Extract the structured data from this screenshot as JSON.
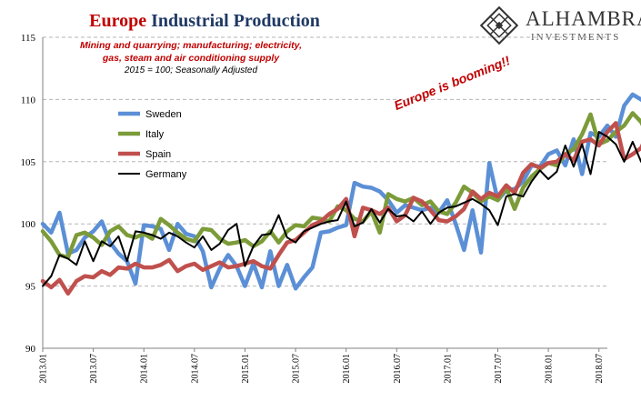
{
  "title": {
    "part1": "Europe",
    "part2": "Industrial Production"
  },
  "subtitle_lines": [
    "Mining and quarrying; manufacturing; electricity,",
    "gas, steam and air conditioning supply"
  ],
  "note": "2015 = 100; Seasonally Adjusted",
  "annotation": "Europe is booming!!",
  "logo": {
    "name": "ALHAMBRA",
    "tagline": "INVESTMENTS"
  },
  "chart_data": {
    "type": "line",
    "ylim": [
      90,
      115
    ],
    "y_ticks": [
      90,
      95,
      100,
      105,
      110,
      115
    ],
    "grid": "horizontal dashed",
    "legend_position": "upper-left",
    "x_tick_labels": [
      "2013.01",
      "2013.07",
      "2014.01",
      "2014.07",
      "2015.01",
      "2015.07",
      "2016.01",
      "2016.07",
      "2017.01",
      "2017.07",
      "2018.01",
      "2018.07"
    ],
    "x_start": "2013.01",
    "x_end": "2018.07",
    "series": [
      {
        "name": "Sweden",
        "color": "#5b8fd6",
        "width": 4.5,
        "values": [
          100.0,
          99.3,
          100.9,
          97.6,
          97.9,
          98.9,
          99.4,
          100.2,
          98.5,
          97.6,
          97.0,
          95.2,
          99.9,
          99.8,
          99.6,
          97.9,
          100.0,
          99.2,
          99.0,
          97.8,
          94.9,
          96.4,
          97.5,
          96.6,
          95.0,
          96.8,
          94.9,
          97.8,
          95.0,
          96.7,
          94.8,
          95.7,
          96.5,
          99.3,
          99.4,
          99.7,
          99.9,
          103.3,
          103.0,
          102.9,
          102.6,
          101.9,
          100.9,
          101.5,
          101.3,
          101.1,
          101.3,
          100.9,
          101.9,
          100.0,
          97.9,
          101.1,
          97.7,
          104.9,
          101.9,
          102.7,
          102.8,
          103.4,
          104.7,
          104.6,
          105.6,
          105.9,
          104.7,
          106.8,
          104.0,
          107.3,
          107.0,
          107.9,
          107.0,
          109.5,
          110.4,
          110.0,
          109.5,
          110.2,
          108.4,
          110.5,
          110.9,
          107.0
        ]
      },
      {
        "name": "Italy",
        "color": "#7c9b39",
        "width": 4.5,
        "values": [
          99.4,
          98.6,
          97.5,
          97.3,
          99.1,
          99.3,
          98.9,
          98.3,
          99.4,
          99.8,
          99.1,
          98.9,
          99.2,
          98.8,
          100.4,
          99.9,
          99.3,
          98.8,
          98.6,
          99.6,
          99.5,
          98.8,
          98.4,
          98.5,
          98.7,
          98.2,
          98.6,
          99.4,
          98.5,
          99.4,
          99.9,
          99.8,
          100.5,
          100.4,
          100.2,
          101.4,
          101.1,
          100.4,
          100.2,
          101.0,
          99.3,
          102.4,
          102.0,
          101.8,
          102.1,
          101.5,
          101.8,
          101.0,
          100.8,
          101.7,
          103.0,
          102.5,
          101.8,
          102.2,
          101.9,
          102.9,
          101.2,
          102.9,
          103.8,
          104.4,
          104.9,
          104.7,
          105.6,
          106.0,
          107.2,
          108.8,
          106.4,
          106.7,
          107.4,
          107.9,
          108.9,
          108.2,
          106.9,
          107.5,
          107.9,
          107.4,
          108.0,
          106.2
        ]
      },
      {
        "name": "Spain",
        "color": "#c0504d",
        "width": 4.5,
        "values": [
          95.4,
          94.9,
          95.5,
          94.4,
          95.4,
          95.8,
          95.7,
          96.2,
          95.9,
          96.5,
          96.4,
          96.8,
          96.5,
          96.5,
          96.7,
          97.1,
          96.2,
          96.6,
          96.8,
          96.3,
          96.6,
          96.9,
          96.5,
          96.6,
          96.8,
          97.0,
          96.6,
          96.4,
          97.5,
          98.5,
          98.7,
          99.3,
          99.9,
          100.2,
          100.8,
          101.2,
          102.0,
          99.0,
          101.3,
          101.1,
          100.8,
          101.3,
          100.2,
          100.7,
          102.1,
          101.8,
          101.1,
          100.3,
          100.2,
          100.6,
          101.2,
          102.6,
          102.0,
          102.5,
          102.2,
          103.1,
          102.5,
          104.1,
          104.8,
          104.5,
          104.9,
          105.0,
          105.6,
          105.1,
          106.6,
          106.8,
          106.3,
          107.4,
          108.1,
          105.2,
          105.6,
          106.1,
          107.5,
          106.5,
          106.3,
          105.8,
          105.5,
          105.4
        ]
      },
      {
        "name": "Germany",
        "color": "#000000",
        "width": 2,
        "values": [
          95.0,
          95.8,
          97.5,
          97.2,
          96.7,
          98.6,
          97.0,
          98.6,
          98.2,
          99.0,
          97.0,
          99.4,
          99.3,
          99.1,
          98.8,
          99.3,
          99.0,
          98.5,
          98.1,
          99.0,
          97.9,
          98.4,
          99.5,
          100.0,
          96.6,
          98.2,
          99.1,
          99.2,
          100.7,
          98.9,
          98.5,
          99.4,
          99.7,
          100.0,
          100.2,
          100.3,
          101.8,
          99.8,
          100.1,
          101.2,
          100.1,
          101.2,
          100.6,
          100.7,
          100.2,
          101.0,
          100.0,
          100.9,
          101.3,
          101.4,
          101.7,
          102.0,
          101.6,
          101.1,
          99.9,
          102.2,
          102.4,
          102.2,
          103.4,
          104.3,
          103.6,
          104.2,
          106.3,
          104.6,
          106.4,
          104.0,
          107.4,
          107.0,
          106.4,
          105.0,
          106.6,
          105.0,
          106.0,
          107.1,
          106.8,
          104.6
        ]
      }
    ]
  }
}
